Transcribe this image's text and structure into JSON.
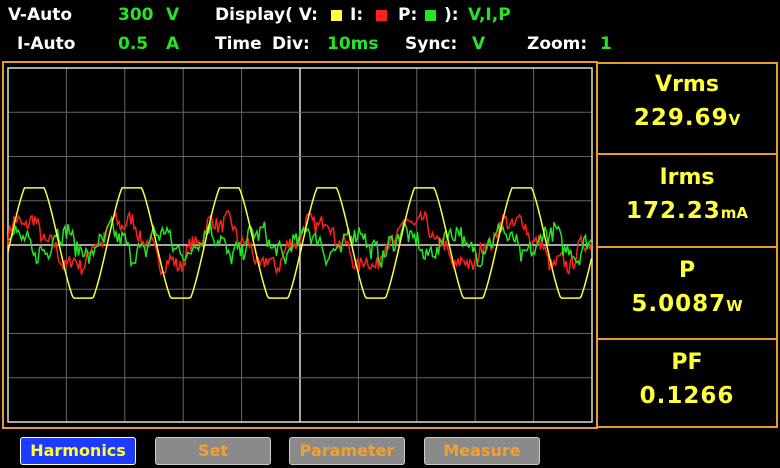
{
  "header": {
    "row1": {
      "range_v": "V-Auto",
      "range_v_value": "300",
      "range_v_unit": "V",
      "display_label": "Display( V:",
      "display_i": "I:",
      "display_p": "P:",
      "display_close": "):",
      "display_value": "V,I,P"
    },
    "row2": {
      "range_i": "I-Auto",
      "range_i_value": "0.5",
      "range_i_unit": "A",
      "time_label": "Time",
      "div_label": "Div:",
      "div_value": "10ms",
      "sync_label": "Sync:",
      "sync_value": "V",
      "zoom_label": "Zoom:",
      "zoom_value": "1"
    }
  },
  "measurements": [
    {
      "label": "Vrms",
      "value": "229.69",
      "unit": "V"
    },
    {
      "label": "Irms",
      "value": "172.23",
      "unit": "mA"
    },
    {
      "label": "P",
      "value": "5.0087",
      "unit": "W"
    },
    {
      "label": "PF",
      "value": "0.1266",
      "unit": ""
    }
  ],
  "buttons": [
    "Harmonics",
    "Set",
    "Parameter",
    "Measure"
  ]
}
